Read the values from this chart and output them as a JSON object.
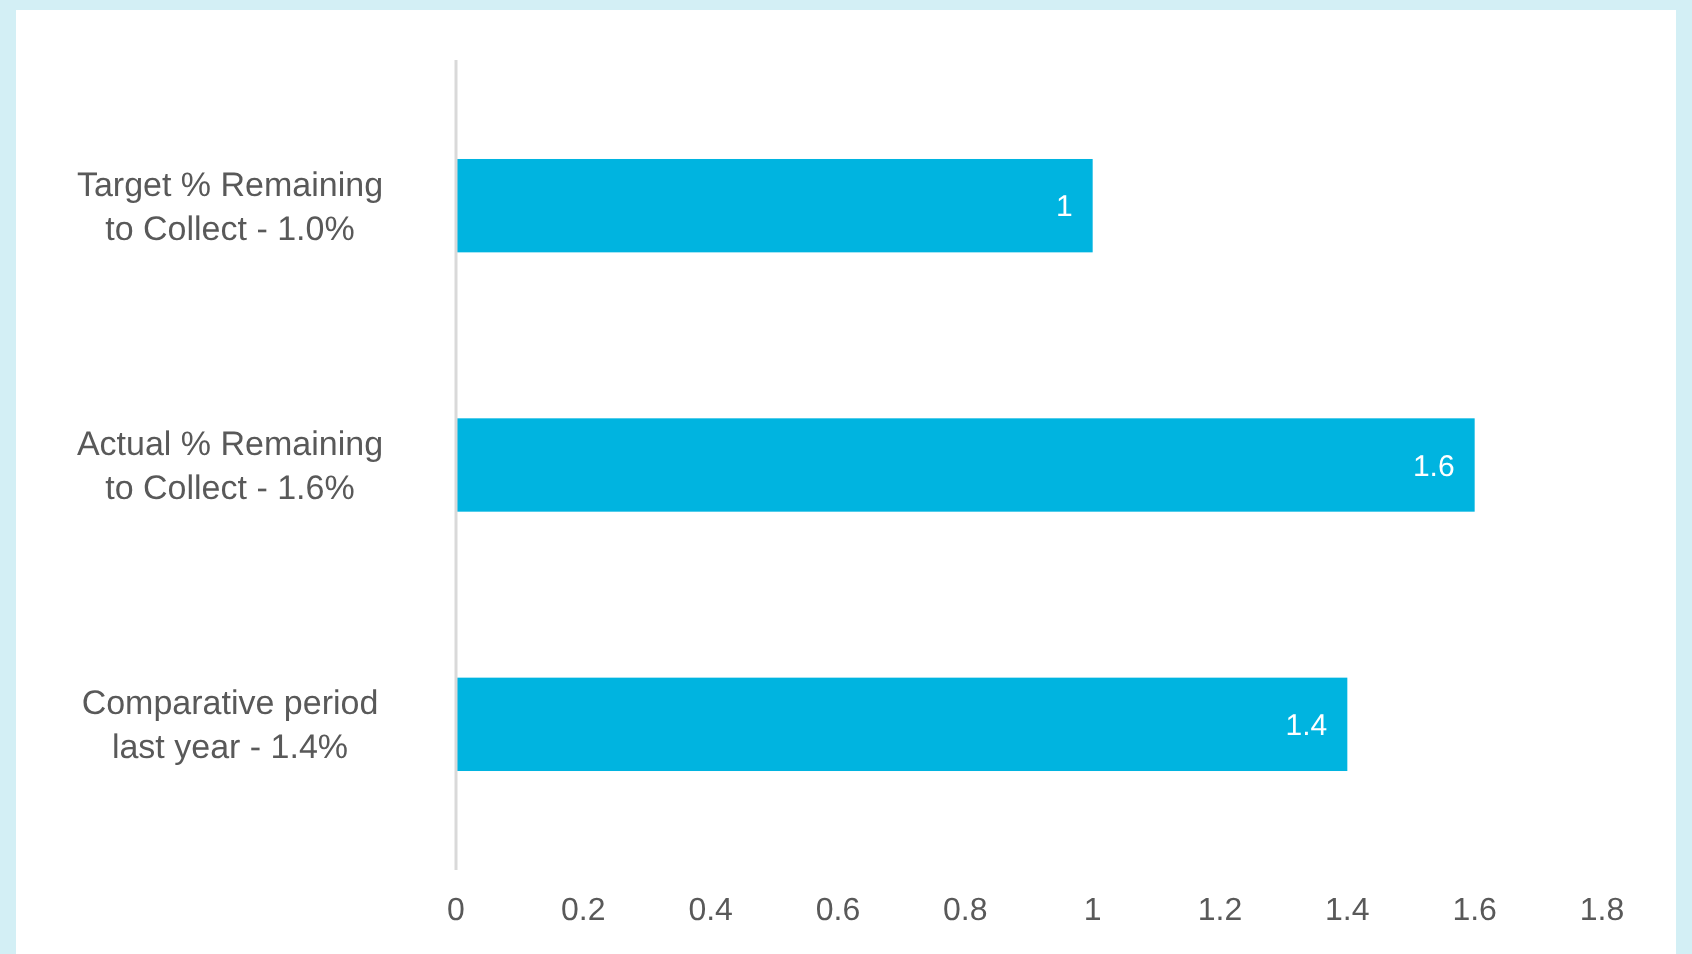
{
  "chart_data": {
    "type": "bar",
    "orientation": "horizontal",
    "categories": [
      "Target % Remaining to Collect - 1.0%",
      "Actual % Remaining to Collect - 1.6%",
      "Comparative period last year - 1.4%"
    ],
    "values": [
      1,
      1.6,
      1.4
    ],
    "color": "#00b4e0",
    "xlim": [
      0,
      1.8
    ],
    "xticks": [
      0,
      0.2,
      0.4,
      0.6,
      0.8,
      1,
      1.2,
      1.4,
      1.6,
      1.8
    ],
    "grid": false,
    "data_labels": true
  }
}
